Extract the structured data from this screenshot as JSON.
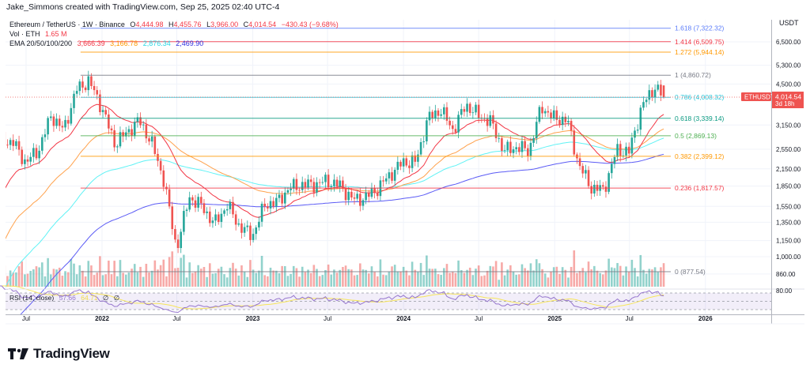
{
  "header": {
    "credit": "Jake_Simmons created with TradingView.com, Sep 25, 2025 02:40 UTC-4"
  },
  "legend": {
    "symbol": "Ethereum / TetherUS · 1W · Binance",
    "o_label": "O",
    "o": "4,444.98",
    "h_label": "H",
    "h": "4,455.76",
    "l_label": "L",
    "l": "3,966.00",
    "c_label": "C",
    "c": "4,014.54",
    "change": "−430.43 (−9.68%)",
    "vol_label": "Vol · ETH",
    "vol": "1.65 M",
    "ema_label": "EMA 20/50/100/200",
    "ema20": "3,666.39",
    "ema50": "3,166.78",
    "ema100": "2,876.34",
    "ema200": "2,469.90",
    "rsi_label": "RSI (14, close)",
    "rsi": "57.66",
    "rsi_ma": "64.71",
    "rsi_na1": "∅",
    "rsi_na2": "∅"
  },
  "price_axis": {
    "currency": "USDT",
    "ticks": [
      "6,500.00",
      "5,300.00",
      "4,500.00",
      "3,150.00",
      "2,550.00",
      "2,150.00",
      "1,850.00",
      "1,550.00",
      "1,350.00",
      "1,150.00",
      "1,000.00",
      "860.00"
    ],
    "rsi_tick": "80.00",
    "last_symbol": "ETHUSDT",
    "last_price": "4,014.54",
    "countdown": "3d 18h"
  },
  "time_axis": [
    "Jul",
    "2022",
    "Jul",
    "2023",
    "Jul",
    "2024",
    "Jul",
    "2025",
    "Jul",
    "2026"
  ],
  "branding": {
    "logo_text": "TradingView"
  },
  "colors": {
    "up": "#26a69a",
    "down": "#ef5350",
    "ema20": "#f23645",
    "ema50": "#ffa24d",
    "ema100": "#5ff2f5",
    "ema200": "#5b5bf5",
    "rsi": "#9575cd",
    "rsi_ma": "#f7e55a"
  },
  "chart_data": {
    "type": "candlestick",
    "title": "Ethereum / TetherUS · 1W · Binance",
    "scale": "log",
    "ylim": [
      780,
      8000
    ],
    "xlim": [
      "2021-04-26",
      "2026-08-01"
    ],
    "grid": true,
    "interval": "1W",
    "monthly_closes": [
      [
        "2021-05",
        2700
      ],
      [
        "2021-06",
        2270
      ],
      [
        "2021-07",
        2530
      ],
      [
        "2021-08",
        3430
      ],
      [
        "2021-09",
        3000
      ],
      [
        "2021-10",
        4290
      ],
      [
        "2021-11",
        4630
      ],
      [
        "2021-12",
        3680
      ],
      [
        "2022-01",
        2690
      ],
      [
        "2022-02",
        2920
      ],
      [
        "2022-03",
        3280
      ],
      [
        "2022-04",
        2730
      ],
      [
        "2022-05",
        1940
      ],
      [
        "2022-06",
        1070
      ],
      [
        "2022-07",
        1680
      ],
      [
        "2022-08",
        1550
      ],
      [
        "2022-09",
        1330
      ],
      [
        "2022-10",
        1570
      ],
      [
        "2022-11",
        1300
      ],
      [
        "2022-12",
        1200
      ],
      [
        "2023-01",
        1585
      ],
      [
        "2023-02",
        1605
      ],
      [
        "2023-03",
        1820
      ],
      [
        "2023-04",
        1870
      ],
      [
        "2023-05",
        1875
      ],
      [
        "2023-06",
        1935
      ],
      [
        "2023-07",
        1855
      ],
      [
        "2023-08",
        1645
      ],
      [
        "2023-09",
        1670
      ],
      [
        "2023-10",
        1815
      ],
      [
        "2023-11",
        2050
      ],
      [
        "2023-12",
        2280
      ],
      [
        "2024-01",
        2280
      ],
      [
        "2024-02",
        3340
      ],
      [
        "2024-03",
        3600
      ],
      [
        "2024-04",
        3010
      ],
      [
        "2024-05",
        3760
      ],
      [
        "2024-06",
        3430
      ],
      [
        "2024-07",
        3230
      ],
      [
        "2024-08",
        2510
      ],
      [
        "2024-09",
        2600
      ],
      [
        "2024-10",
        2520
      ],
      [
        "2024-11",
        3700
      ],
      [
        "2024-12",
        3330
      ],
      [
        "2025-01",
        3300
      ],
      [
        "2025-02",
        2230
      ],
      [
        "2025-03",
        1820
      ],
      [
        "2025-04",
        1790
      ],
      [
        "2025-05",
        2530
      ],
      [
        "2025-06",
        2490
      ],
      [
        "2025-07",
        3700
      ],
      [
        "2025-08",
        4400
      ]
    ],
    "last_candle": {
      "date": "2025-09-22",
      "open": 4444.98,
      "high": 4455.76,
      "low": 3966.0,
      "close": 4014.54,
      "volume": "1.65 M"
    },
    "fib_levels": [
      {
        "ratio": "1.618",
        "price": 7322.32,
        "label": "1.618 (7,322.32)",
        "color": "#5b7cfa"
      },
      {
        "ratio": "1.414",
        "price": 6509.75,
        "label": "1.414 (6,509.75)",
        "color": "#f23645"
      },
      {
        "ratio": "1.272",
        "price": 5944.14,
        "label": "1.272 (5,944.14)",
        "color": "#ff9800"
      },
      {
        "ratio": "1",
        "price": 4860.72,
        "label": "1 (4,860.72)",
        "color": "#787b86"
      },
      {
        "ratio": "0.786",
        "price": 4008.32,
        "label": "0.786 (4,008.32)",
        "color": "#26c6da"
      },
      {
        "ratio": "0.618",
        "price": 3339.14,
        "label": "0.618 (3,339.14)",
        "color": "#089981"
      },
      {
        "ratio": "0.5",
        "price": 2869.13,
        "label": "0.5 (2,869.13)",
        "color": "#4caf50"
      },
      {
        "ratio": "0.382",
        "price": 2399.12,
        "label": "0.382 (2,399.12)",
        "color": "#ff9800"
      },
      {
        "ratio": "0.236",
        "price": 1817.57,
        "label": "0.236 (1,817.57)",
        "color": "#f23645"
      },
      {
        "ratio": "0",
        "price": 877.54,
        "label": "0 (877.54)",
        "color": "#787b86"
      }
    ],
    "indicators": [
      "Vol",
      "EMA 20",
      "EMA 50",
      "EMA 100",
      "EMA 200",
      "RSI (14, close)"
    ],
    "rsi_bands": [
      70,
      50,
      30
    ]
  }
}
